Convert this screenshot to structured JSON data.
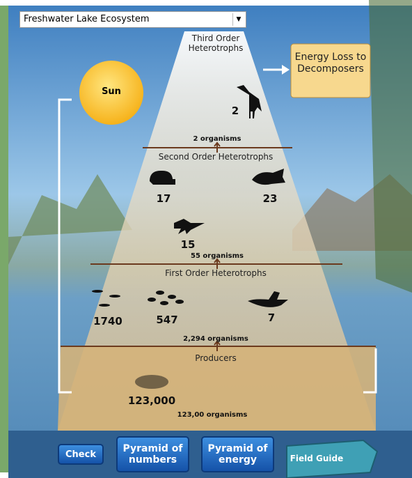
{
  "dropdown": {
    "selected": "Freshwater Lake Ecosystem"
  },
  "sun": "Sun",
  "energy_loss": "Energy Loss to Decomposers",
  "levels": [
    {
      "name": "Third Order Heterotrophs",
      "organisms": [
        "2"
      ],
      "total": "2 organisms"
    },
    {
      "name": "Second Order Heterotrophs",
      "organisms": [
        "17",
        "23",
        "15"
      ],
      "total": "55 organisms"
    },
    {
      "name": "First Order Heterotrophs",
      "organisms": [
        "1740",
        "547",
        "7"
      ],
      "total": "2,294 organisms"
    },
    {
      "name": "Producers",
      "organisms": [
        "123,000"
      ],
      "total": "123,00 organisms"
    }
  ],
  "buttons": {
    "check": "Check",
    "numbers": "Pyramid of numbers",
    "energy": "Pyramid of energy",
    "field_guide": "Field Guide"
  }
}
